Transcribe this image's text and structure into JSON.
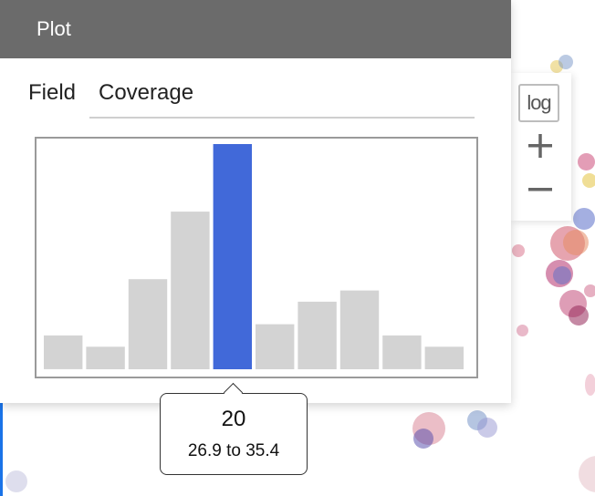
{
  "panel": {
    "title": "Plot",
    "field_label": "Field",
    "field_value": "Coverage"
  },
  "toolbar": {
    "log_label": "log",
    "zoom_in_icon": "plus-icon",
    "zoom_out_icon": "minus-icon"
  },
  "colors": {
    "header_bg": "#6b6b6b",
    "bar_default": "#d3d3d3",
    "bar_highlight": "#4169d9"
  },
  "chart_data": {
    "type": "bar",
    "highlighted_index": 4,
    "values": [
      3,
      2,
      8,
      14,
      20,
      4,
      6,
      7,
      3,
      2
    ],
    "grid": false
  },
  "tooltip": {
    "count": "20",
    "range": "26.9 to 35.4"
  }
}
